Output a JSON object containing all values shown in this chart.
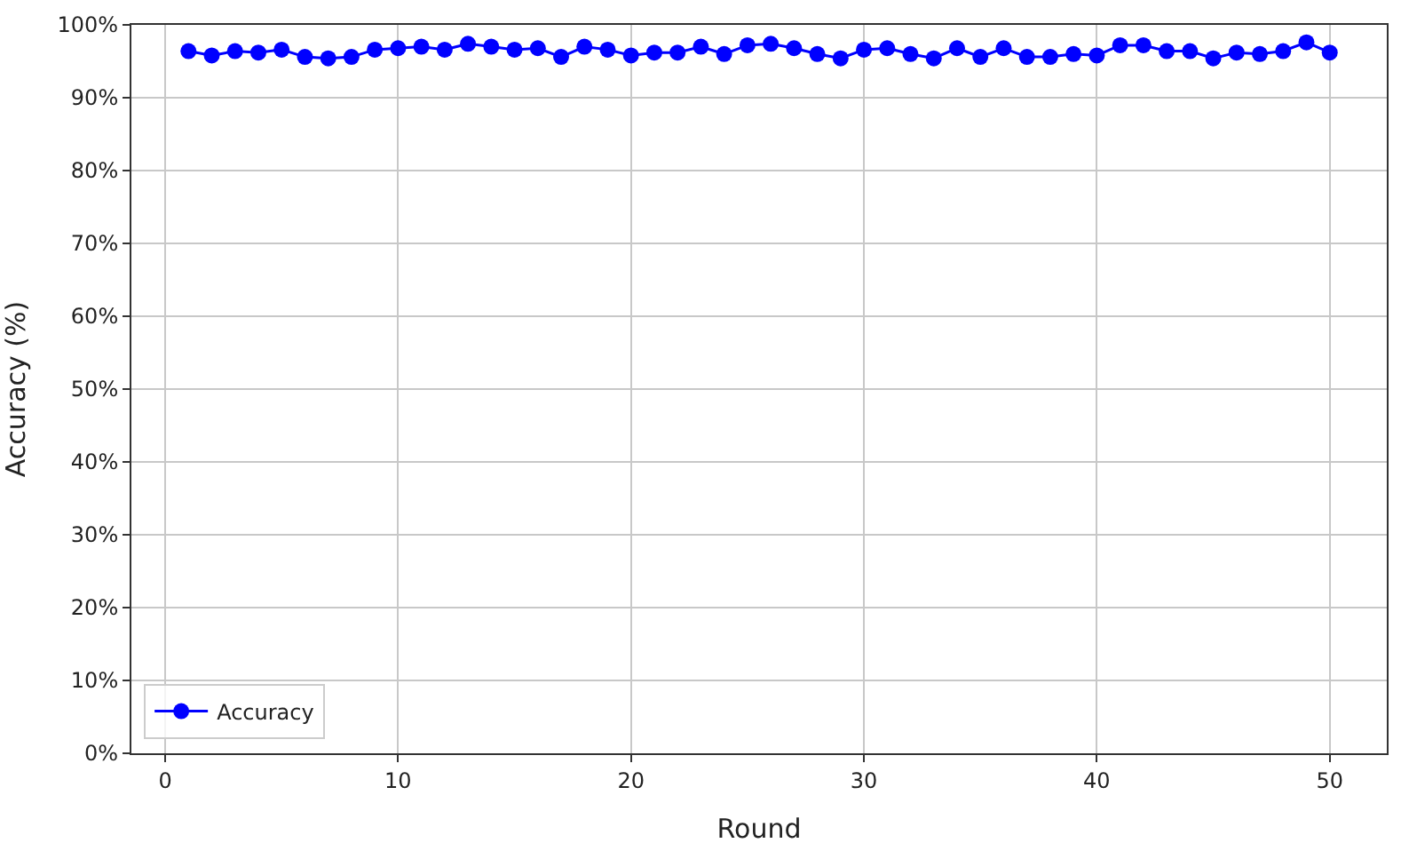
{
  "chart_data": {
    "type": "line",
    "xlabel": "Round",
    "ylabel": "Accuracy (%)",
    "x": [
      1,
      2,
      3,
      4,
      5,
      6,
      7,
      8,
      9,
      10,
      11,
      12,
      13,
      14,
      15,
      16,
      17,
      18,
      19,
      20,
      21,
      22,
      23,
      24,
      25,
      26,
      27,
      28,
      29,
      30,
      31,
      32,
      33,
      34,
      35,
      36,
      37,
      38,
      39,
      40,
      41,
      42,
      43,
      44,
      45,
      46,
      47,
      48,
      49,
      50
    ],
    "series": [
      {
        "name": "Accuracy",
        "color": "#0000ff",
        "values": [
          96.4,
          95.8,
          96.4,
          96.2,
          96.6,
          95.6,
          95.4,
          95.6,
          96.6,
          96.8,
          97.0,
          96.6,
          97.4,
          97.0,
          96.6,
          96.8,
          95.6,
          97.0,
          96.6,
          95.8,
          96.2,
          96.2,
          97.0,
          96.0,
          97.2,
          97.4,
          96.8,
          96.0,
          95.4,
          96.6,
          96.8,
          96.0,
          95.4,
          96.8,
          95.6,
          96.8,
          95.6,
          95.6,
          96.0,
          95.8,
          97.2,
          97.2,
          96.4,
          96.4,
          95.4,
          96.2,
          96.0,
          96.4,
          97.6,
          96.2
        ]
      }
    ],
    "xlim": [
      -1.45,
      52.45
    ],
    "xticks": [
      0,
      10,
      20,
      30,
      40,
      50
    ],
    "ylim": [
      0,
      100
    ],
    "yticks": [
      {
        "value": 0,
        "label": "0%"
      },
      {
        "value": 10,
        "label": "10%"
      },
      {
        "value": 20,
        "label": "20%"
      },
      {
        "value": 30,
        "label": "30%"
      },
      {
        "value": 40,
        "label": "40%"
      },
      {
        "value": 50,
        "label": "50%"
      },
      {
        "value": 60,
        "label": "60%"
      },
      {
        "value": 70,
        "label": "70%"
      },
      {
        "value": 80,
        "label": "80%"
      },
      {
        "value": 90,
        "label": "90%"
      },
      {
        "value": 100,
        "label": "100%"
      }
    ],
    "grid": true,
    "legend": "bottom left",
    "marker": "circle",
    "line_style": "solid"
  }
}
